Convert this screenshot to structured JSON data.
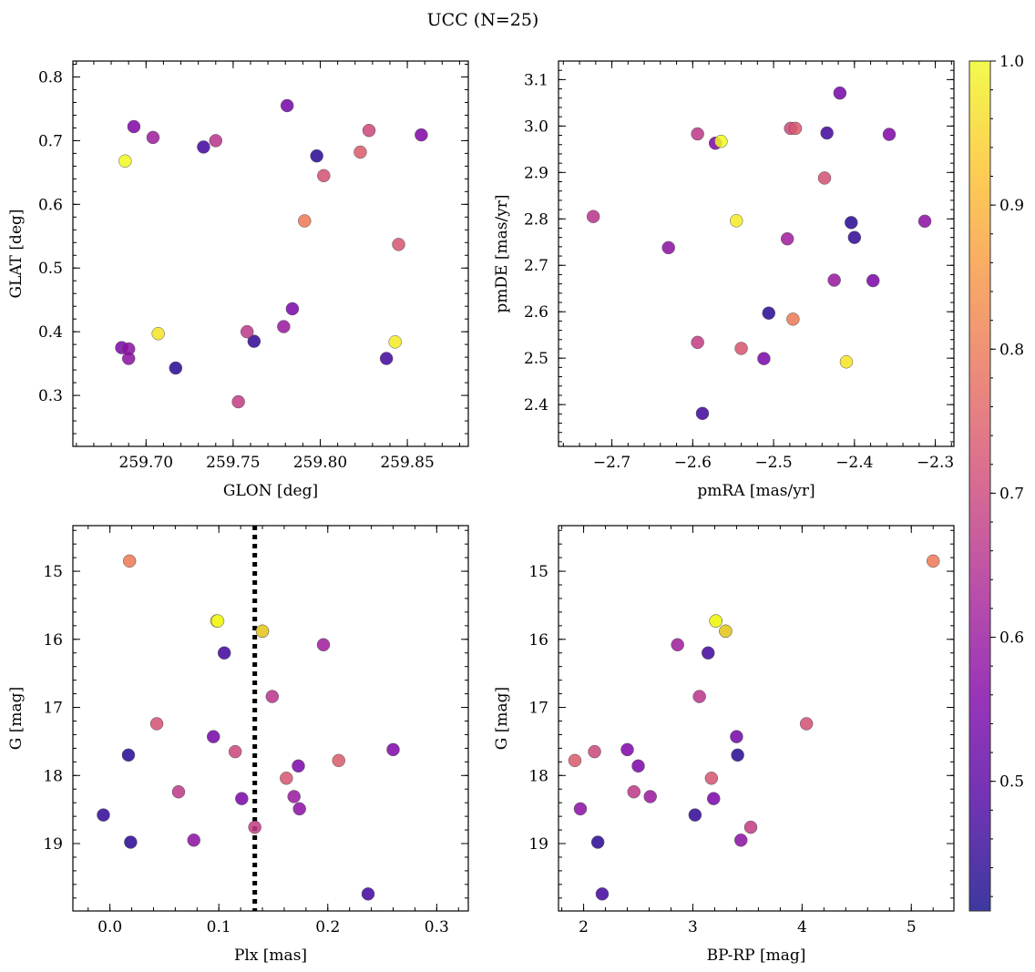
{
  "figure": {
    "title": "UCC (N=25)"
  },
  "colorbar": {
    "cmap": "plasma",
    "vmin": 0.41,
    "vmax": 1.0,
    "ticks": [
      0.5,
      0.6,
      0.7,
      0.8,
      0.9,
      1.0
    ],
    "tick_labels": [
      "0.5",
      "0.6",
      "0.7",
      "0.8",
      "0.9",
      "1.0"
    ]
  },
  "members": [
    {
      "id": 1,
      "glon": 259.688,
      "glat": 0.668,
      "pmra": -2.565,
      "pmde": 2.967,
      "plx": 0.099,
      "g": 15.73,
      "bprp": 3.21,
      "prob": 1.0
    },
    {
      "id": 2,
      "glon": 259.693,
      "glat": 0.722,
      "pmra": -2.572,
      "pmde": 2.963,
      "plx": 0.14,
      "g": 15.88,
      "bprp": 3.3,
      "prob": 0.56
    },
    {
      "id": 3,
      "glon": 259.704,
      "glat": 0.705,
      "pmra": -2.483,
      "pmde": 2.757,
      "plx": 0.196,
      "g": 16.08,
      "bprp": 2.86,
      "prob": 0.61
    },
    {
      "id": 4,
      "glon": 259.733,
      "glat": 0.69,
      "pmra": -2.434,
      "pmde": 2.985,
      "plx": 0.105,
      "g": 16.2,
      "bprp": 3.14,
      "prob": 0.47
    },
    {
      "id": 5,
      "glon": 259.74,
      "glat": 0.7,
      "pmra": -2.723,
      "pmde": 2.805,
      "plx": 0.149,
      "g": 16.84,
      "bprp": 3.06,
      "prob": 0.66
    },
    {
      "id": 6,
      "glon": 259.781,
      "glat": 0.755,
      "pmra": -2.418,
      "pmde": 3.071,
      "plx": 0.095,
      "g": 17.43,
      "bprp": 3.4,
      "prob": 0.54
    },
    {
      "id": 7,
      "glon": 259.798,
      "glat": 0.676,
      "pmra": -2.404,
      "pmde": 2.792,
      "plx": 0.017,
      "g": 17.7,
      "bprp": 3.41,
      "prob": 0.44
    },
    {
      "id": 8,
      "glon": 259.802,
      "glat": 0.645,
      "pmra": -2.437,
      "pmde": 2.888,
      "plx": 0.043,
      "g": 17.24,
      "bprp": 4.04,
      "prob": 0.72
    },
    {
      "id": 9,
      "glon": 259.823,
      "glat": 0.682,
      "pmra": -2.473,
      "pmde": 2.995,
      "plx": 0.21,
      "g": 17.78,
      "bprp": 1.92,
      "prob": 0.74
    },
    {
      "id": 10,
      "glon": 259.828,
      "glat": 0.716,
      "pmra": -2.479,
      "pmde": 2.995,
      "plx": 0.115,
      "g": 17.65,
      "bprp": 2.1,
      "prob": 0.7
    },
    {
      "id": 11,
      "glon": 259.858,
      "glat": 0.709,
      "pmra": -2.357,
      "pmde": 2.982,
      "plx": 0.26,
      "g": 17.62,
      "bprp": 2.4,
      "prob": 0.56
    },
    {
      "id": 12,
      "glon": 259.791,
      "glat": 0.574,
      "pmra": -2.476,
      "pmde": 2.584,
      "plx": 0.018,
      "g": 14.85,
      "bprp": 5.2,
      "prob": 0.8
    },
    {
      "id": 13,
      "glon": 259.845,
      "glat": 0.537,
      "pmra": -2.54,
      "pmde": 2.521,
      "plx": 0.162,
      "g": 18.04,
      "bprp": 3.17,
      "prob": 0.73
    },
    {
      "id": 14,
      "glon": 259.707,
      "glat": 0.397,
      "pmra": -2.41,
      "pmde": 2.492,
      "plx": 0.098,
      "g": 15.73,
      "bprp": 3.21,
      "prob": 0.97
    },
    {
      "id": 15,
      "glon": 259.843,
      "glat": 0.384,
      "pmra": -2.546,
      "pmde": 2.796,
      "plx": 0.14,
      "g": 15.88,
      "bprp": 3.3,
      "prob": 0.98
    },
    {
      "id": 16,
      "glon": 259.784,
      "glat": 0.436,
      "pmra": -2.512,
      "pmde": 2.499,
      "plx": 0.173,
      "g": 17.86,
      "bprp": 2.5,
      "prob": 0.55
    },
    {
      "id": 17,
      "glon": 259.779,
      "glat": 0.408,
      "pmra": -2.425,
      "pmde": 2.668,
      "plx": 0.169,
      "g": 18.31,
      "bprp": 2.61,
      "prob": 0.6
    },
    {
      "id": 18,
      "glon": 259.758,
      "glat": 0.4,
      "pmra": -2.594,
      "pmde": 2.983,
      "plx": 0.063,
      "g": 18.24,
      "bprp": 2.46,
      "prob": 0.67
    },
    {
      "id": 19,
      "glon": 259.762,
      "glat": 0.385,
      "pmra": -2.4,
      "pmde": 2.76,
      "plx": -0.006,
      "g": 18.58,
      "bprp": 3.02,
      "prob": 0.45
    },
    {
      "id": 20,
      "glon": 259.686,
      "glat": 0.375,
      "pmra": -2.377,
      "pmde": 2.667,
      "plx": 0.121,
      "g": 18.34,
      "bprp": 3.19,
      "prob": 0.55
    },
    {
      "id": 21,
      "glon": 259.69,
      "glat": 0.373,
      "pmra": -2.313,
      "pmde": 2.795,
      "plx": 0.174,
      "g": 18.49,
      "bprp": 1.97,
      "prob": 0.58
    },
    {
      "id": 22,
      "glon": 259.69,
      "glat": 0.358,
      "pmra": -2.63,
      "pmde": 2.738,
      "plx": 0.077,
      "g": 18.95,
      "bprp": 3.44,
      "prob": 0.58
    },
    {
      "id": 23,
      "glon": 259.717,
      "glat": 0.343,
      "pmra": -2.506,
      "pmde": 2.597,
      "plx": 0.019,
      "g": 18.98,
      "bprp": 2.13,
      "prob": 0.44
    },
    {
      "id": 24,
      "glon": 259.838,
      "glat": 0.358,
      "pmra": -2.588,
      "pmde": 2.381,
      "plx": 0.237,
      "g": 19.74,
      "bprp": 2.17,
      "prob": 0.47
    },
    {
      "id": 25,
      "glon": 259.753,
      "glat": 0.29,
      "pmra": -2.594,
      "pmde": 2.534,
      "plx": 0.133,
      "g": 18.76,
      "bprp": 3.53,
      "prob": 0.68
    }
  ],
  "chart_data": [
    {
      "type": "scatter",
      "panel": "top-left",
      "xlabel": "GLON [deg]",
      "ylabel": "GLAT [deg]",
      "x_field": "glon",
      "y_field": "glat",
      "xlim": [
        259.658,
        259.885
      ],
      "ylim": [
        0.22,
        0.825
      ],
      "xticks": [
        259.7,
        259.75,
        259.8,
        259.85
      ],
      "xtick_labels": [
        "259.70",
        "259.75",
        "259.80",
        "259.85"
      ],
      "yticks": [
        0.3,
        0.4,
        0.5,
        0.6,
        0.7,
        0.8
      ],
      "ytick_labels": [
        "0.3",
        "0.4",
        "0.5",
        "0.6",
        "0.7",
        "0.8"
      ],
      "x_minor": 0.01,
      "y_minor": 0.02,
      "inverted_y": false,
      "grid": false
    },
    {
      "type": "scatter",
      "panel": "top-right",
      "xlabel": "pmRA [mas/yr]",
      "ylabel": "pmDE [mas/yr]",
      "x_field": "pmra",
      "y_field": "pmde",
      "xlim": [
        -2.766,
        -2.277
      ],
      "ylim": [
        2.31,
        3.14
      ],
      "xticks": [
        -2.7,
        -2.6,
        -2.5,
        -2.4,
        -2.3
      ],
      "xtick_labels": [
        "−2.7",
        "−2.6",
        "−2.5",
        "−2.4",
        "−2.3"
      ],
      "yticks": [
        2.4,
        2.5,
        2.6,
        2.7,
        2.8,
        2.9,
        3.0,
        3.1
      ],
      "ytick_labels": [
        "2.4",
        "2.5",
        "2.6",
        "2.7",
        "2.8",
        "2.9",
        "3.0",
        "3.1"
      ],
      "x_minor": 0.02,
      "y_minor": 0.02,
      "inverted_y": false,
      "grid": false
    },
    {
      "type": "scatter",
      "panel": "bottom-left",
      "xlabel": "Plx [mas]",
      "ylabel": "G [mag]",
      "x_field": "plx",
      "y_field": "g",
      "xlim": [
        -0.034,
        0.329
      ],
      "ylim": [
        14.33,
        19.99
      ],
      "xticks": [
        0.0,
        0.1,
        0.2,
        0.3
      ],
      "xtick_labels": [
        "0.0",
        "0.1",
        "0.2",
        "0.3"
      ],
      "yticks": [
        15,
        16,
        17,
        18,
        19
      ],
      "ytick_labels": [
        "15",
        "16",
        "17",
        "18",
        "19"
      ],
      "x_minor": 0.02,
      "y_minor": 0.2,
      "inverted_y": true,
      "grid": false,
      "vline": 0.133
    },
    {
      "type": "scatter",
      "panel": "bottom-right",
      "xlabel": "BP-RP [mag]",
      "ylabel": "G [mag]",
      "x_field": "bprp",
      "y_field": "g",
      "xlim": [
        1.77,
        5.39
      ],
      "ylim": [
        14.33,
        19.99
      ],
      "xticks": [
        2,
        3,
        4,
        5
      ],
      "xtick_labels": [
        "2",
        "3",
        "4",
        "5"
      ],
      "yticks": [
        15,
        16,
        17,
        18,
        19
      ],
      "ytick_labels": [
        "15",
        "16",
        "17",
        "18",
        "19"
      ],
      "x_minor": 0.2,
      "y_minor": 0.2,
      "inverted_y": true,
      "grid": false
    }
  ]
}
